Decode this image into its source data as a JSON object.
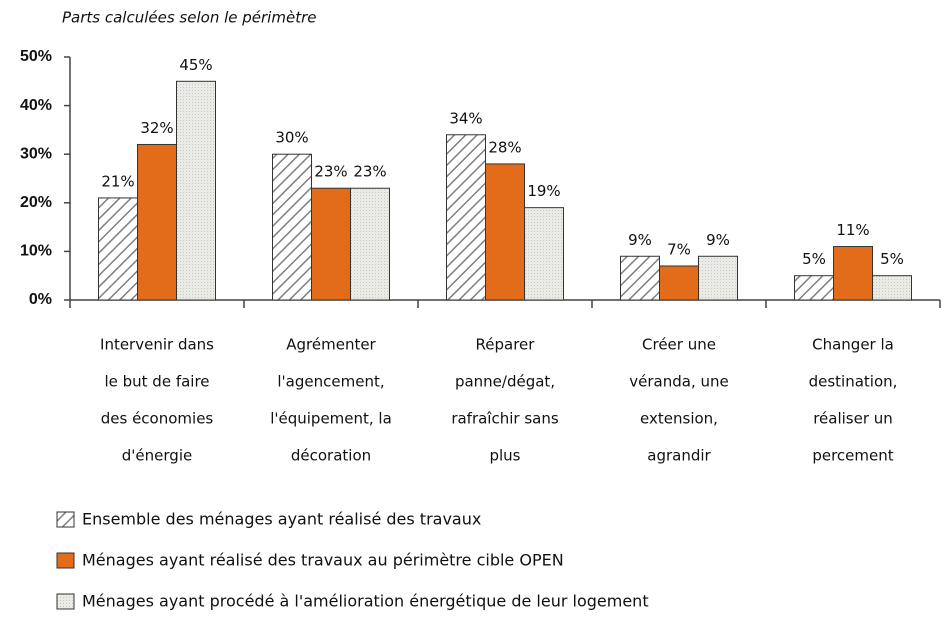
{
  "chart_data": {
    "type": "bar",
    "subtitle": "Parts calculées selon le périmètre",
    "categories": [
      [
        "Intervenir dans",
        "le but de faire",
        "des économies",
        "d'énergie"
      ],
      [
        "Agrémenter",
        "l'agencement,",
        "l'équipement, la",
        "décoration"
      ],
      [
        "Réparer",
        "panne/dégat,",
        "rafraîchir sans",
        "plus"
      ],
      [
        "Créer une",
        "véranda, une",
        "extension,",
        "agrandir"
      ],
      [
        "Changer la",
        "destination,",
        "réaliser un",
        "percement"
      ]
    ],
    "series": [
      {
        "name": "Ensemble des ménages ayant réalisé des travaux",
        "color": "#7f7f7f",
        "pattern": "hatch",
        "values": [
          21,
          30,
          34,
          9,
          5
        ],
        "value_labels": [
          "21%",
          "30%",
          "34%",
          "9%",
          "5%"
        ]
      },
      {
        "name": "Ménages ayant réalisé des travaux au périmètre cible OPEN",
        "color": "#e36c1a",
        "pattern": "solid",
        "values": [
          32,
          23,
          28,
          7,
          11
        ],
        "value_labels": [
          "32%",
          "23%",
          "28%",
          "7%",
          "11%"
        ]
      },
      {
        "name": "Ménages ayant procédé à l'amélioration énergétique de leur logement",
        "color": "#e9e9e4",
        "pattern": "dots",
        "values": [
          45,
          23,
          19,
          9,
          5
        ],
        "value_labels": [
          "45%",
          "23%",
          "19%",
          "9%",
          "5%"
        ]
      }
    ],
    "ylim": [
      0,
      50
    ],
    "yticks": [
      {
        "value": 0,
        "label": "0%"
      },
      {
        "value": 10,
        "label": "10%"
      },
      {
        "value": 20,
        "label": "20%"
      },
      {
        "value": 30,
        "label": "30%"
      },
      {
        "value": 40,
        "label": "40%"
      },
      {
        "value": 50,
        "label": "50%"
      }
    ],
    "grid": false
  }
}
